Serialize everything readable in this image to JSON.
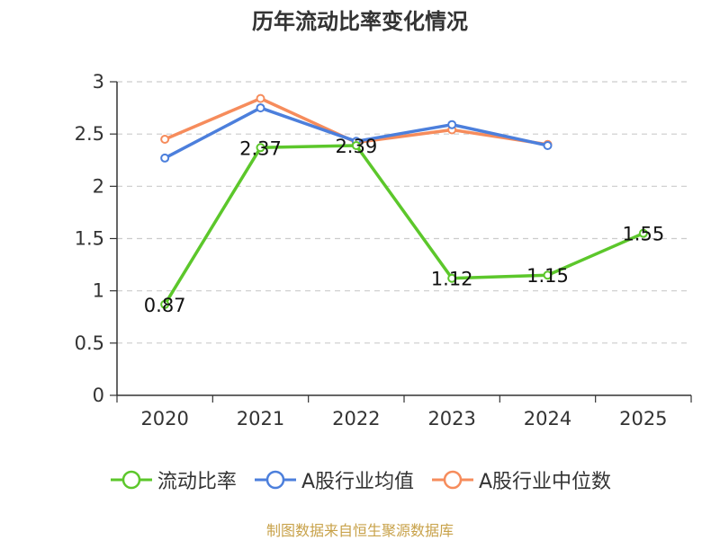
{
  "chart_data": {
    "type": "line",
    "title": "历年流动比率变化情况",
    "categories": [
      "2020",
      "2021",
      "2022",
      "2023",
      "2024",
      "2025"
    ],
    "ylim": [
      0,
      3
    ],
    "yticks": [
      0,
      0.5,
      1,
      1.5,
      2,
      2.5,
      3
    ],
    "ytick_labels": [
      "0",
      "0.5",
      "1",
      "1.5",
      "2",
      "2.5",
      "3"
    ],
    "grid": true,
    "legend_position": "bottom",
    "series": [
      {
        "name": "流动比率",
        "color": "#5cc72b",
        "values": [
          0.87,
          2.37,
          2.39,
          1.12,
          1.15,
          1.55
        ],
        "labels": [
          "0.87",
          "2.37",
          "2.39",
          "1.12",
          "1.15",
          "1.55"
        ],
        "show_labels": true
      },
      {
        "name": "A股行业均值",
        "color": "#4c7fdc",
        "values": [
          2.27,
          2.75,
          2.43,
          2.59,
          2.39,
          null
        ],
        "show_labels": false
      },
      {
        "name": "A股行业中位数",
        "color": "#f68c5c",
        "values": [
          2.45,
          2.84,
          2.42,
          2.54,
          2.4,
          null
        ],
        "show_labels": false
      }
    ]
  },
  "source": "制图数据来自恒生聚源数据库"
}
